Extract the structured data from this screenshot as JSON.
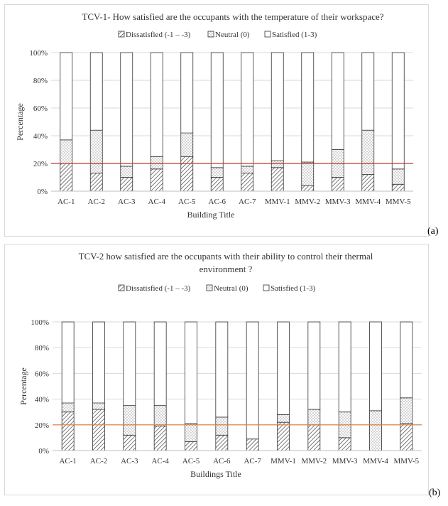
{
  "panel_labels": {
    "a": "(a)",
    "b": "(b)"
  },
  "chart_data": [
    {
      "type": "bar",
      "stacked": true,
      "title": "TCV-1- How satisfied are the occupants with the temperature of their workspace?",
      "xlabel": "Building Title",
      "ylabel": "Percentage",
      "ylim": [
        0,
        100
      ],
      "yticks": [
        "0%",
        "20%",
        "40%",
        "60%",
        "80%",
        "100%"
      ],
      "grid": true,
      "legend_position": "top",
      "reference_line": {
        "value": 20,
        "color": "#c0392b"
      },
      "categories": [
        "AC-1",
        "AC-2",
        "AC-3",
        "AC-4",
        "AC-5",
        "AC-6",
        "AC-7",
        "MMV-1",
        "MMV-2",
        "MMV-3",
        "MMV-4",
        "MMV-5"
      ],
      "series": [
        {
          "name": "Dissatisfied (-1 – -3)",
          "pattern": "hatch",
          "values": [
            20,
            13,
            10,
            16,
            25,
            10,
            13,
            17,
            4,
            10,
            12,
            5
          ]
        },
        {
          "name": "Neutral (0)",
          "pattern": "dots",
          "values": [
            17,
            31,
            8,
            9,
            17,
            7,
            5,
            5,
            17,
            20,
            32,
            11
          ]
        },
        {
          "name": "Satisfied (1-3)",
          "pattern": "blank",
          "values": [
            63,
            56,
            82,
            75,
            58,
            83,
            82,
            78,
            79,
            70,
            56,
            84
          ]
        }
      ]
    },
    {
      "type": "bar",
      "stacked": true,
      "title": "TCV-2 how satisfied are the occupants with their ability to control their thermal environment ?",
      "title_lines": [
        "TCV-2 how satisfied are the occupants with their ability to control their thermal",
        "environment ?"
      ],
      "xlabel": "Buildings Title",
      "ylabel": "Percentage",
      "ylim": [
        0,
        100
      ],
      "yticks": [
        "0%",
        "20%",
        "40%",
        "60%",
        "80%",
        "100%"
      ],
      "grid": true,
      "legend_position": "top",
      "reference_line": {
        "value": 20,
        "color": "#e07b39"
      },
      "categories": [
        "AC-1",
        "AC-2",
        "AC-3",
        "AC-4",
        "AC-5",
        "AC-6",
        "AC-7",
        "MMV-1",
        "MMV-2",
        "MMV-3",
        "MMV-4",
        "MMV-5"
      ],
      "series": [
        {
          "name": "Dissatisfied (-1 – -3)",
          "pattern": "hatch",
          "values": [
            30,
            32,
            12,
            19,
            7,
            12,
            9,
            22,
            20,
            10,
            0,
            21
          ]
        },
        {
          "name": "Neutral (0)",
          "pattern": "dots",
          "values": [
            7,
            5,
            23,
            16,
            14,
            14,
            0,
            6,
            12,
            20,
            31,
            20
          ]
        },
        {
          "name": "Satisfied (1-3)",
          "pattern": "blank",
          "values": [
            63,
            63,
            65,
            65,
            79,
            74,
            91,
            72,
            68,
            70,
            69,
            59
          ]
        }
      ]
    }
  ]
}
